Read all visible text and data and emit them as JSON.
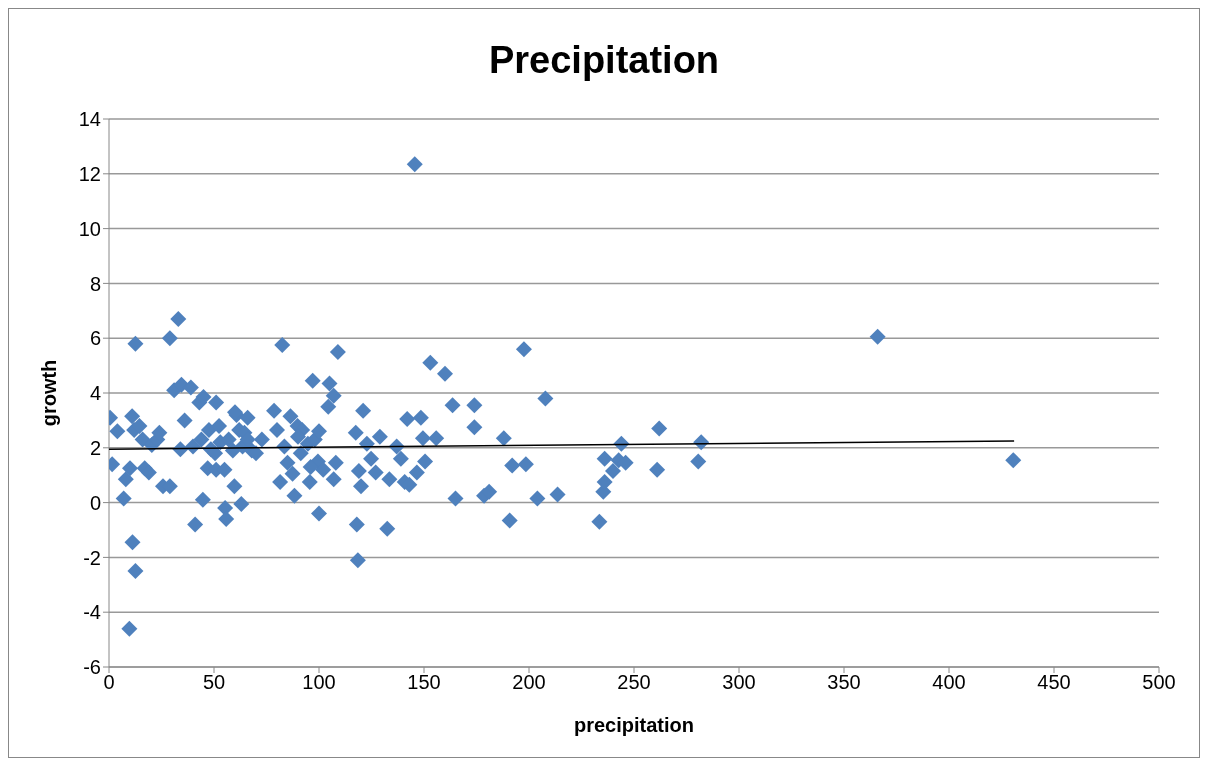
{
  "chart_data": {
    "type": "scatter",
    "title": "Precipitation",
    "xlabel": "precipitation",
    "ylabel": "growth",
    "xlim": [
      0,
      500
    ],
    "xticks": [
      0,
      50,
      100,
      150,
      200,
      250,
      300,
      350,
      400,
      450,
      500
    ],
    "ylim": [
      -6,
      14
    ],
    "yticks": [
      -6,
      -4,
      -2,
      0,
      2,
      4,
      6,
      8,
      10,
      12,
      14
    ],
    "grid": "y",
    "marker": "diamond",
    "series": [
      {
        "type": "scatter",
        "color": "#4f81bd",
        "x": [
          0.5,
          1.5,
          4,
          7,
          8,
          10,
          11,
          11.2,
          12.6,
          12.6,
          9.7,
          12,
          14.5,
          16,
          17,
          19,
          20.4,
          23,
          24,
          25.7,
          29,
          29,
          31,
          33,
          34,
          34.5,
          36,
          39,
          40,
          41,
          43,
          44,
          44.7,
          45,
          47,
          47.6,
          48.5,
          50.5,
          51,
          51,
          52.4,
          53,
          55,
          55.3,
          55.8,
          57,
          59,
          59.7,
          60.7,
          62,
          63,
          63.6,
          64.5,
          66,
          68,
          70,
          72.8,
          78.6,
          80,
          81.5,
          82.5,
          83.5,
          85,
          86.4,
          87.4,
          88.3,
          89.8,
          91.3,
          92,
          94.7,
          95.6,
          97,
          98,
          99.5,
          100,
          102,
          104.4,
          105,
          107,
          107,
          108,
          109,
          117.5,
          118.5,
          119,
          120,
          118,
          121,
          122.8,
          124.8,
          127,
          129,
          132.5,
          133.5,
          137,
          139,
          140.8,
          143,
          142,
          145.6,
          146.6,
          148.5,
          149.5,
          150.5,
          153,
          155.8,
          160,
          163.6,
          165,
          174,
          174,
          178.6,
          181,
          188,
          190.8,
          192,
          197.6,
          198.5,
          204,
          207.8,
          213.6,
          233.5,
          235.4,
          236,
          236,
          240,
          242.7,
          244,
          246,
          262,
          261,
          280.6,
          282,
          366,
          430.6,
          60,
          66,
          90,
          96,
          100
        ],
        "values": [
          3.1,
          1.4,
          2.6,
          0.15,
          0.85,
          1.25,
          3.15,
          -1.45,
          5.8,
          -2.5,
          -4.6,
          2.65,
          2.8,
          2.3,
          1.25,
          1.1,
          2.1,
          2.3,
          2.55,
          0.6,
          6.0,
          0.6,
          4.1,
          6.7,
          1.95,
          4.3,
          3.0,
          4.2,
          2.05,
          -0.8,
          3.65,
          2.3,
          0.1,
          3.85,
          1.25,
          2.65,
          1.95,
          1.8,
          3.65,
          1.2,
          2.8,
          2.2,
          1.2,
          -0.2,
          -0.6,
          2.3,
          1.9,
          0.6,
          3.2,
          2.65,
          -0.05,
          2.05,
          2.55,
          3.1,
          1.9,
          1.8,
          2.3,
          3.35,
          2.65,
          0.75,
          5.75,
          2.05,
          1.45,
          3.15,
          1.05,
          0.25,
          2.8,
          1.8,
          2.65,
          2.15,
          0.75,
          4.45,
          2.3,
          1.5,
          -0.4,
          1.2,
          3.5,
          4.35,
          3.9,
          0.85,
          1.45,
          5.5,
          2.55,
          -2.1,
          1.15,
          0.6,
          -0.8,
          3.35,
          2.15,
          1.6,
          1.1,
          2.4,
          -0.95,
          0.85,
          2.05,
          1.6,
          0.75,
          0.65,
          3.05,
          12.35,
          1.1,
          3.1,
          2.35,
          1.5,
          5.1,
          2.35,
          4.7,
          3.55,
          0.15,
          3.55,
          2.75,
          0.25,
          0.4,
          2.35,
          -0.65,
          1.35,
          5.6,
          1.4,
          0.15,
          3.8,
          0.3,
          -0.7,
          0.4,
          0.75,
          1.6,
          1.15,
          1.55,
          2.15,
          1.45,
          2.7,
          1.2,
          1.5,
          2.2,
          6.05,
          1.55,
          3.3,
          2.3,
          2.4,
          1.3,
          2.6
        ]
      },
      {
        "type": "line",
        "color": "#000000",
        "marker": "none",
        "x": [
          0,
          431
        ],
        "values": [
          1.95,
          2.25
        ]
      }
    ]
  }
}
